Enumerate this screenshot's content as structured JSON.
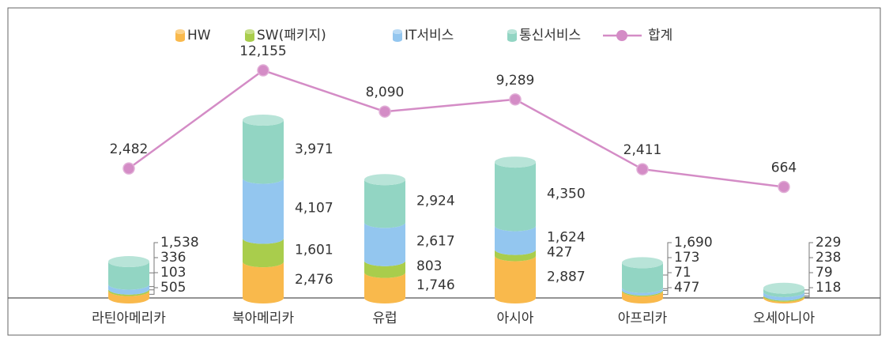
{
  "chart_data": {
    "type": "bar",
    "stacked": true,
    "categories": [
      "라틴아메리카",
      "북아메리카",
      "유럽",
      "아시아",
      "아프리카",
      "오세아니아"
    ],
    "series": [
      {
        "name": "HW",
        "color": "#f9b94c",
        "values": [
          505,
          2476,
          1746,
          2887,
          477,
          118
        ],
        "value_labels": [
          "505",
          "2,476",
          "1,746",
          "2,887",
          "477",
          "118"
        ]
      },
      {
        "name": "SW(패키지)",
        "color": "#a9cd4c",
        "values": [
          103,
          1601,
          803,
          427,
          71,
          79
        ],
        "value_labels": [
          "103",
          "1,601",
          "803",
          "427",
          "71",
          "79"
        ]
      },
      {
        "name": "IT서비스",
        "color": "#93c6ef",
        "values": [
          336,
          4107,
          2617,
          1624,
          173,
          238
        ],
        "value_labels": [
          "336",
          "4,107",
          "2,617",
          "1,624",
          "173",
          "238"
        ]
      },
      {
        "name": "통신서비스",
        "color": "#92d5c3",
        "values": [
          1538,
          3971,
          2924,
          4350,
          1690,
          229
        ],
        "value_labels": [
          "1,538",
          "3,971",
          "2,924",
          "4,350",
          "1,690",
          "229"
        ]
      },
      {
        "name": "합계",
        "type": "line",
        "color": "#d48cc6",
        "values": [
          2482,
          12155,
          8090,
          9289,
          2411,
          664
        ],
        "value_labels": [
          "2,482",
          "12,155",
          "8,090",
          "9,289",
          "2,411",
          "664"
        ]
      }
    ],
    "legend": "top"
  }
}
